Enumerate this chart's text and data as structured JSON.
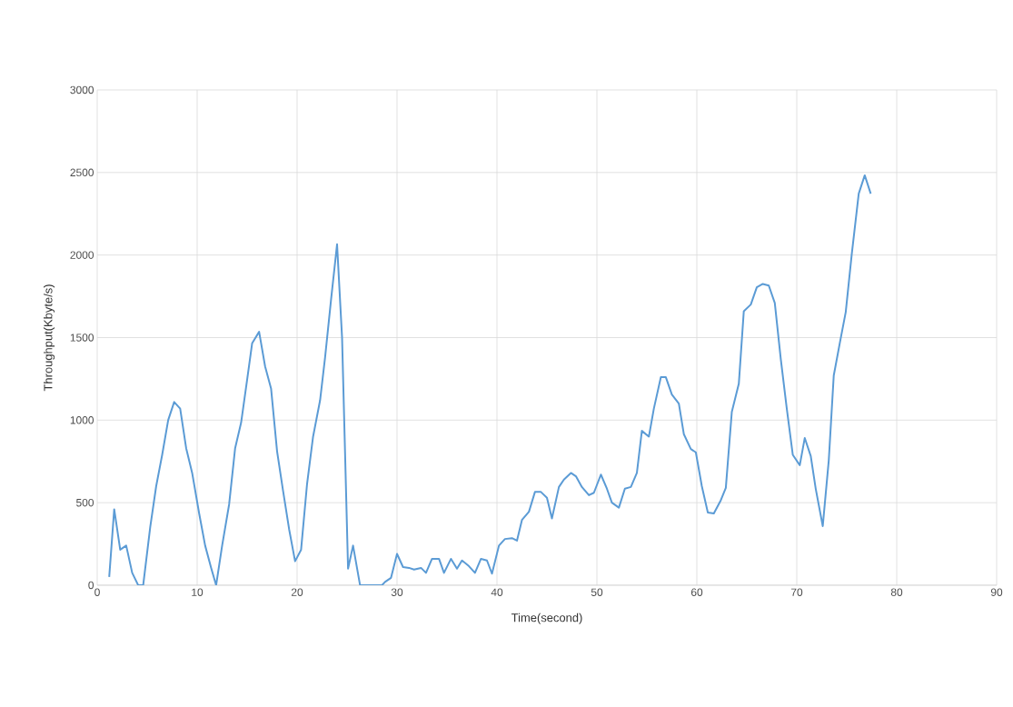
{
  "chart_data": {
    "type": "line",
    "xlabel": "Time(second)",
    "ylabel": "Throughput(Kbyte/s)",
    "xlim": [
      0,
      90
    ],
    "ylim": [
      0,
      3000
    ],
    "xticks": [
      0,
      10,
      20,
      30,
      40,
      50,
      60,
      70,
      80,
      90
    ],
    "yticks": [
      0,
      500,
      1000,
      1500,
      2000,
      2500,
      3000
    ],
    "grid": true,
    "marker": "none",
    "line_style": "solid",
    "x": [
      1.2,
      1.7,
      2.3,
      2.9,
      3.5,
      4.1,
      4.6,
      5.3,
      5.9,
      6.5,
      7.1,
      7.7,
      8.3,
      8.9,
      9.5,
      10.2,
      10.8,
      11.4,
      11.9,
      12.5,
      13.2,
      13.8,
      14.4,
      15.0,
      15.5,
      16.2,
      16.8,
      17.4,
      18.0,
      18.6,
      19.2,
      19.8,
      20.4,
      21.0,
      21.6,
      22.3,
      22.8,
      23.4,
      24.0,
      24.5,
      25.1,
      25.6,
      26.3,
      28.5,
      28.8,
      29.4,
      30.0,
      30.6,
      31.2,
      31.7,
      32.4,
      32.9,
      33.5,
      34.2,
      34.7,
      35.4,
      36.0,
      36.5,
      37.2,
      37.8,
      38.4,
      39.0,
      39.5,
      40.2,
      40.8,
      41.5,
      42.0,
      42.5,
      43.2,
      43.8,
      44.4,
      45.0,
      45.5,
      46.2,
      46.7,
      47.4,
      47.9,
      48.5,
      49.2,
      49.7,
      50.4,
      51.0,
      51.5,
      52.2,
      52.8,
      53.4,
      54.0,
      54.5,
      55.2,
      55.7,
      56.4,
      56.9,
      57.5,
      58.2,
      58.7,
      59.4,
      59.9,
      60.5,
      61.1,
      61.7,
      62.4,
      62.9,
      63.5,
      64.2,
      64.7,
      65.4,
      66.0,
      66.6,
      67.2,
      67.8,
      68.4,
      69.0,
      69.6,
      70.3,
      70.8,
      71.4,
      71.9,
      72.6,
      73.2,
      73.7,
      74.3,
      74.9,
      75.5,
      76.2,
      76.8,
      77.4
    ],
    "series": [
      {
        "color": "#5b9bd5",
        "values": [
          50,
          460,
          215,
          240,
          75,
          0,
          0,
          350,
          600,
          790,
          1000,
          1110,
          1070,
          830,
          680,
          435,
          240,
          105,
          0,
          240,
          490,
          830,
          985,
          1245,
          1465,
          1535,
          1325,
          1190,
          810,
          570,
          340,
          145,
          215,
          615,
          900,
          1120,
          1380,
          1730,
          2065,
          1500,
          100,
          240,
          0,
          0,
          20,
          45,
          190,
          110,
          105,
          95,
          105,
          75,
          160,
          160,
          75,
          160,
          100,
          150,
          115,
          75,
          160,
          150,
          70,
          240,
          280,
          285,
          270,
          395,
          445,
          565,
          565,
          530,
          405,
          595,
          640,
          680,
          660,
          595,
          545,
          560,
          670,
          585,
          500,
          470,
          585,
          595,
          680,
          935,
          900,
          1070,
          1260,
          1260,
          1155,
          1100,
          915,
          825,
          805,
          600,
          440,
          435,
          515,
          590,
          1050,
          1220,
          1660,
          1700,
          1805,
          1825,
          1815,
          1710,
          1370,
          1070,
          790,
          727,
          892,
          782,
          583,
          358,
          755,
          1270,
          1465,
          1655,
          2004,
          2372,
          2483,
          2372
        ]
      }
    ]
  }
}
